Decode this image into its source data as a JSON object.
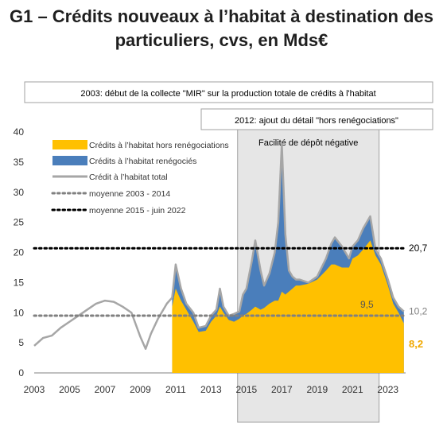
{
  "title_line1": "G1 – Crédits nouveaux à l’habitat à destination des",
  "title_line2": "particuliers, cvs, en Mds€",
  "colors": {
    "hors_reneg": "#FFC000",
    "reneg": "#4A7EBB",
    "total": "#A6A6A6",
    "avg1": "#808080",
    "avg2": "#000000",
    "shade": "#E6E6E6",
    "label_orange": "#F0A800"
  },
  "chart_data": {
    "type": "area",
    "x_ticks": [
      "2003",
      "2005",
      "2007",
      "2009",
      "2011",
      "2013",
      "2015",
      "2017",
      "2019",
      "2021",
      "2023"
    ],
    "y_ticks": [
      "0",
      "5",
      "10",
      "15",
      "20",
      "25",
      "30",
      "35",
      "40"
    ],
    "ylim": [
      0,
      40
    ],
    "xlim": [
      2003,
      2024
    ],
    "legend": [
      "Crédits à l’habitat hors renégociations",
      "Crédits à l’habitat renégociés",
      "Crédit à l’habitat total",
      "moyenne 2003 - 2014",
      "moyenne 2015 - juin 2022"
    ],
    "legend_placement": "top-left",
    "annotations": {
      "box1": "2003: début de la collecte \"MIR\" sur la production totale de crédits à l'habitat",
      "box2": "2012: ajout du détail \"hors renégociations\"",
      "shaded": "Facilité de dépôt négative",
      "avg2_value": "20,7",
      "avg1_value": "9,5",
      "total_end": "10,2",
      "hors_end": "8,2"
    },
    "shaded_range": [
      2014.5,
      2022.5
    ],
    "averages": {
      "moyenne_2003_2014": 9.5,
      "moyenne_2015_2022": 20.7
    },
    "total": [
      [
        2003.0,
        4.5
      ],
      [
        2003.5,
        5.8
      ],
      [
        2004.0,
        6.2
      ],
      [
        2004.5,
        7.5
      ],
      [
        2005.0,
        8.5
      ],
      [
        2005.5,
        9.5
      ],
      [
        2006.0,
        10.5
      ],
      [
        2006.5,
        11.5
      ],
      [
        2007.0,
        12.0
      ],
      [
        2007.5,
        11.8
      ],
      [
        2008.0,
        11.0
      ],
      [
        2008.5,
        10.0
      ],
      [
        2009.0,
        6.0
      ],
      [
        2009.3,
        4.0
      ],
      [
        2009.6,
        6.5
      ],
      [
        2010.0,
        9.0
      ],
      [
        2010.5,
        11.5
      ],
      [
        2010.8,
        12.5
      ],
      [
        2011.0,
        18.0
      ],
      [
        2011.3,
        14.0
      ],
      [
        2011.6,
        11.5
      ],
      [
        2012.0,
        10.0
      ],
      [
        2012.3,
        7.5
      ],
      [
        2012.7,
        7.8
      ],
      [
        2013.0,
        9.5
      ],
      [
        2013.3,
        10.5
      ],
      [
        2013.5,
        14.0
      ],
      [
        2013.7,
        11.0
      ],
      [
        2014.0,
        9.5
      ],
      [
        2014.3,
        9.8
      ],
      [
        2014.6,
        10.2
      ],
      [
        2014.8,
        13.0
      ],
      [
        2015.0,
        14.0
      ],
      [
        2015.3,
        18.5
      ],
      [
        2015.5,
        22.0
      ],
      [
        2015.8,
        17.0
      ],
      [
        2016.0,
        14.5
      ],
      [
        2016.3,
        16.5
      ],
      [
        2016.6,
        20.0
      ],
      [
        2016.8,
        25.0
      ],
      [
        2017.0,
        38.0
      ],
      [
        2017.2,
        23.0
      ],
      [
        2017.4,
        17.0
      ],
      [
        2017.6,
        16.0
      ],
      [
        2017.8,
        15.5
      ],
      [
        2018.0,
        15.5
      ],
      [
        2018.5,
        15.0
      ],
      [
        2019.0,
        16.0
      ],
      [
        2019.5,
        19.0
      ],
      [
        2019.8,
        21.5
      ],
      [
        2020.0,
        22.5
      ],
      [
        2020.4,
        21.0
      ],
      [
        2020.8,
        19.0
      ],
      [
        2021.0,
        21.0
      ],
      [
        2021.3,
        22.0
      ],
      [
        2021.6,
        24.0
      ],
      [
        2022.0,
        26.0
      ],
      [
        2022.3,
        20.5
      ],
      [
        2022.6,
        19.0
      ],
      [
        2023.0,
        15.5
      ],
      [
        2023.3,
        12.5
      ],
      [
        2023.6,
        11.0
      ],
      [
        2023.9,
        10.2
      ]
    ],
    "hors_reneg": [
      [
        2010.8,
        11.0
      ],
      [
        2011.0,
        14.0
      ],
      [
        2011.3,
        12.0
      ],
      [
        2011.6,
        10.5
      ],
      [
        2012.0,
        8.5
      ],
      [
        2012.3,
        6.8
      ],
      [
        2012.7,
        7.0
      ],
      [
        2013.0,
        8.5
      ],
      [
        2013.3,
        9.5
      ],
      [
        2013.5,
        11.0
      ],
      [
        2013.7,
        10.0
      ],
      [
        2014.0,
        8.8
      ],
      [
        2014.3,
        8.5
      ],
      [
        2014.6,
        9.0
      ],
      [
        2014.8,
        9.5
      ],
      [
        2015.0,
        9.8
      ],
      [
        2015.3,
        10.5
      ],
      [
        2015.5,
        11.0
      ],
      [
        2015.8,
        10.5
      ],
      [
        2016.0,
        10.8
      ],
      [
        2016.3,
        11.5
      ],
      [
        2016.6,
        12.0
      ],
      [
        2016.8,
        12.0
      ],
      [
        2017.0,
        13.5
      ],
      [
        2017.2,
        13.0
      ],
      [
        2017.4,
        13.5
      ],
      [
        2017.6,
        14.0
      ],
      [
        2017.8,
        14.5
      ],
      [
        2018.0,
        14.5
      ],
      [
        2018.5,
        14.8
      ],
      [
        2019.0,
        15.5
      ],
      [
        2019.5,
        17.0
      ],
      [
        2019.8,
        18.0
      ],
      [
        2020.0,
        18.0
      ],
      [
        2020.4,
        17.5
      ],
      [
        2020.8,
        17.5
      ],
      [
        2021.0,
        19.0
      ],
      [
        2021.3,
        19.5
      ],
      [
        2021.6,
        20.5
      ],
      [
        2022.0,
        22.0
      ],
      [
        2022.3,
        19.5
      ],
      [
        2022.6,
        18.0
      ],
      [
        2023.0,
        14.5
      ],
      [
        2023.3,
        11.5
      ],
      [
        2023.6,
        10.0
      ],
      [
        2023.9,
        8.2
      ]
    ]
  }
}
